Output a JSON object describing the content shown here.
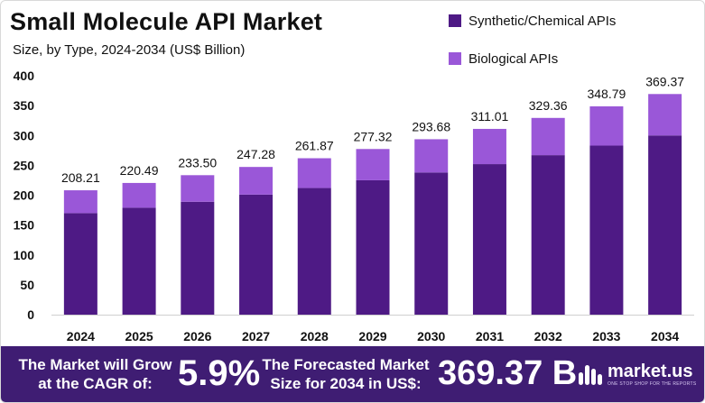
{
  "header": {
    "title": "Small Molecule API Market",
    "subtitle": "Size, by Type, 2024-2034 (US$ Billion)"
  },
  "legend": [
    {
      "label": "Synthetic/Chemical APIs",
      "color": "#4e1a85"
    },
    {
      "label": "Biological APIs",
      "color": "#9a57d8"
    }
  ],
  "chart_data": {
    "type": "bar",
    "stacked": true,
    "categories": [
      "2024",
      "2025",
      "2026",
      "2027",
      "2028",
      "2029",
      "2030",
      "2031",
      "2032",
      "2033",
      "2034"
    ],
    "series": [
      {
        "name": "Synthetic/Chemical APIs",
        "color": "#4e1a85",
        "values": [
          170,
          179,
          189,
          201,
          212,
          225,
          238,
          252,
          267,
          283,
          300
        ]
      },
      {
        "name": "Biological APIs",
        "color": "#9a57d8",
        "values": [
          38.21,
          41.49,
          44.5,
          46.28,
          49.87,
          52.32,
          55.68,
          59.01,
          62.36,
          65.79,
          69.37
        ]
      }
    ],
    "totals": [
      "208.21",
      "220.49",
      "233.50",
      "247.28",
      "261.87",
      "277.32",
      "293.68",
      "311.01",
      "329.36",
      "348.79",
      "369.37"
    ],
    "yticks": [
      0,
      50,
      100,
      150,
      200,
      250,
      300,
      350,
      400
    ],
    "ylim": [
      0,
      400
    ],
    "xlabel": "",
    "ylabel": "",
    "grid": false
  },
  "footer": {
    "growth_text": "The Market will Grow at the CAGR of:",
    "cagr_value": "5.9%",
    "forecast_text": "The Forecasted Market Size for 2034 in US$:",
    "forecast_value": "369.37 B",
    "brand": "market.us",
    "tagline": "ONE STOP SHOP FOR THE REPORTS",
    "background_color": "#3f1d73"
  }
}
